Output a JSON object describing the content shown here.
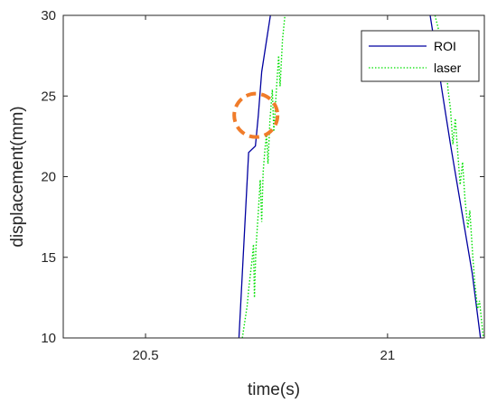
{
  "chart_data": {
    "type": "line",
    "xlabel": "time(s)",
    "ylabel": "displacement(mm)",
    "xlim": [
      20.33,
      21.2
    ],
    "ylim": [
      10,
      30
    ],
    "xticks": [
      20.5,
      21
    ],
    "xtick_labels": [
      "20.5",
      "21"
    ],
    "yticks": [
      10,
      15,
      20,
      25,
      30
    ],
    "ytick_labels": [
      "10",
      "15",
      "20",
      "25",
      "30"
    ],
    "grid": false,
    "legend_position": "top-right",
    "series": [
      {
        "name": "ROI",
        "color": "#0000a0",
        "style": "solid",
        "segments": [
          [
            [
              20.693,
              10
            ],
            [
              20.713,
              21.5
            ],
            [
              20.727,
              21.9
            ],
            [
              20.733,
              23.8
            ],
            [
              20.74,
              26.5
            ],
            [
              20.758,
              30
            ]
          ],
          [
            [
              21.088,
              30
            ],
            [
              21.13,
              22
            ],
            [
              21.175,
              14
            ],
            [
              21.192,
              10
            ]
          ]
        ]
      },
      {
        "name": "laser",
        "color": "#00e000",
        "style": "dotted",
        "segments": [
          [
            [
              20.7,
              10
            ],
            [
              20.705,
              11
            ],
            [
              20.71,
              12
            ],
            [
              20.713,
              13
            ],
            [
              20.72,
              14.8
            ],
            [
              20.723,
              15.8
            ],
            [
              20.725,
              12.5
            ],
            [
              20.728,
              15.5
            ],
            [
              20.733,
              17.8
            ],
            [
              20.737,
              19.8
            ],
            [
              20.74,
              17.2
            ],
            [
              20.743,
              20.3
            ],
            [
              20.747,
              21.8
            ],
            [
              20.75,
              22.6
            ],
            [
              20.753,
              20.8
            ],
            [
              20.757,
              23.5
            ],
            [
              20.762,
              25.4
            ],
            [
              20.765,
              22.8
            ],
            [
              20.77,
              25.2
            ],
            [
              20.775,
              27.5
            ],
            [
              20.778,
              25.6
            ],
            [
              20.783,
              28.5
            ],
            [
              20.788,
              30
            ]
          ],
          [
            [
              21.098,
              30
            ],
            [
              21.108,
              28.8
            ],
            [
              21.112,
              26.3
            ],
            [
              21.118,
              27.8
            ],
            [
              21.125,
              25.4
            ],
            [
              21.13,
              24.2
            ],
            [
              21.135,
              22
            ],
            [
              21.14,
              23.6
            ],
            [
              21.145,
              21.5
            ],
            [
              21.15,
              19.5
            ],
            [
              21.155,
              20.9
            ],
            [
              21.16,
              18.6
            ],
            [
              21.166,
              16.8
            ],
            [
              21.17,
              17.9
            ],
            [
              21.176,
              15.1
            ],
            [
              21.18,
              13.5
            ],
            [
              21.186,
              11.8
            ],
            [
              21.19,
              12.3
            ],
            [
              21.198,
              10
            ]
          ]
        ]
      }
    ],
    "annotations": [
      {
        "type": "dashed-circle",
        "color": "#f07c2a",
        "x": 20.728,
        "y": 23.8
      }
    ]
  }
}
